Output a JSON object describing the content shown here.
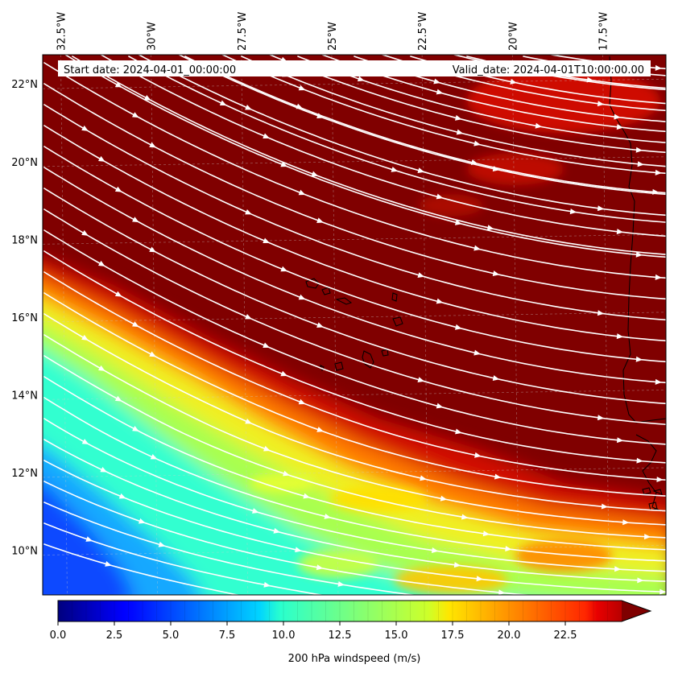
{
  "header": {
    "start_date": "Start date: 2024-04-01_00:00:00",
    "valid_date": "Valid_date: 2024-04-01T10:00:00.00"
  },
  "map": {
    "lon_labels": [
      "32.5°W",
      "30°W",
      "27.5°W",
      "25°W",
      "22.5°W",
      "20°W",
      "17.5°W"
    ],
    "lat_labels": [
      "22°N",
      "20°N",
      "18°N",
      "16°N",
      "14°N",
      "12°N",
      "10°N"
    ],
    "lon_range": [
      -33,
      -15.75
    ],
    "lat_range": [
      8.85,
      22.75
    ],
    "gridlines": true
  },
  "colorbar": {
    "ticks": [
      "0.0",
      "2.5",
      "5.0",
      "7.5",
      "10.0",
      "12.5",
      "15.0",
      "17.5",
      "20.0",
      "22.5"
    ],
    "range": [
      0,
      25
    ],
    "extend": "max",
    "colormap": "jet",
    "label": "200 hPa windspeed (m/s)"
  },
  "colors": {
    "max": "#800000",
    "high": "#d71000",
    "mid_high": "#ff7a00",
    "mid": "#f2f21a",
    "mid_low": "#9cff5c",
    "low_mid": "#2cffd2",
    "low": "#17a9ff",
    "min": "#0a4bff",
    "streamline": "#ffffff",
    "coast": "#000000"
  }
}
